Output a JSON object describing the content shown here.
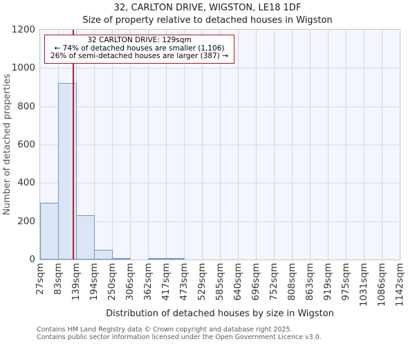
{
  "title": "32, CARLTON DRIVE, WIGSTON, LE18 1DF",
  "subtitle": "Size of property relative to detached houses in Wigston",
  "annotation": {
    "line1": "32 CARLTON DRIVE: 129sqm",
    "line2": "← 74% of detached houses are smaller (1,106)",
    "line3": "26% of semi-detached houses are larger (387) →"
  },
  "chart_data": {
    "type": "bar",
    "title": "32, CARLTON DRIVE, WIGSTON, LE18 1DF",
    "subtitle": "Size of property relative to detached houses in Wigston",
    "xlabel": "Distribution of detached houses by size in Wigston",
    "ylabel": "Number of detached properties",
    "categories": [
      "27sqm",
      "83sqm",
      "139sqm",
      "194sqm",
      "250sqm",
      "306sqm",
      "362sqm",
      "417sqm",
      "473sqm",
      "529sqm",
      "585sqm",
      "640sqm",
      "696sqm",
      "752sqm",
      "808sqm",
      "863sqm",
      "919sqm",
      "975sqm",
      "1031sqm",
      "1086sqm",
      "1142sqm"
    ],
    "values": [
      295,
      920,
      230,
      50,
      6,
      0,
      4,
      4,
      0,
      0,
      0,
      0,
      0,
      0,
      0,
      0,
      0,
      0,
      0,
      0
    ],
    "ylim": [
      0,
      1200
    ],
    "yticks": [
      0,
      200,
      400,
      600,
      800,
      1000,
      1200
    ],
    "grid": "on",
    "legend": "none",
    "marker": {
      "value_sqm": 129,
      "axis_min_sqm": 27,
      "axis_max_sqm": 1142,
      "smaller_pct": 74,
      "smaller_count": "1,106",
      "larger_pct": 26,
      "larger_count": "387"
    },
    "colors": {
      "bar_fill": "#dbe5f3",
      "bar_edge": "#6c96cc",
      "marker_line": "#c41622",
      "annotation_border": "#b5121c",
      "plot_bg": "#f3f6fc",
      "grid_vertical": "#d0d7e4",
      "grid_horizontal": "#dadade"
    }
  },
  "footer": {
    "line1": "Contains HM Land Registry data © Crown copyright and database right 2025.",
    "line2": "Contains public sector information licensed under the Open Government Licence v3.0."
  }
}
